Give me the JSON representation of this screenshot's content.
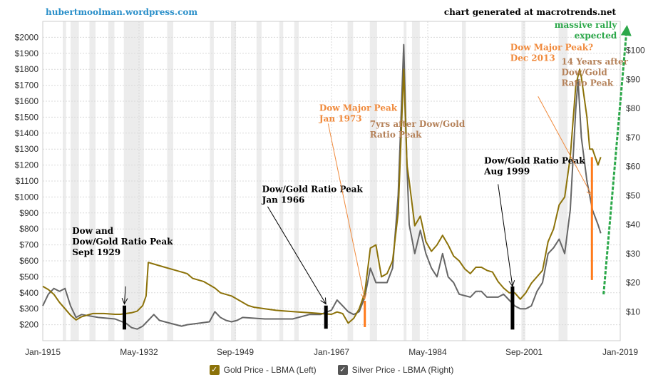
{
  "header": {
    "site": "hubertmoolman.wordpress.com",
    "credit": "chart generated at macrotrends.net"
  },
  "chart_data": {
    "type": "line",
    "x_range": [
      1915,
      2019
    ],
    "x_ticks": [
      {
        "year": 1915,
        "label": "Jan-1915"
      },
      {
        "year": 1932.33,
        "label": "May-1932"
      },
      {
        "year": 1949.67,
        "label": "Sep-1949"
      },
      {
        "year": 1967,
        "label": "Jan-1967"
      },
      {
        "year": 1984.33,
        "label": "May-1984"
      },
      {
        "year": 2001.67,
        "label": "Sep-2001"
      },
      {
        "year": 2019,
        "label": "Jan-2019"
      }
    ],
    "y_left": {
      "min": 100,
      "max": 2100,
      "ticks": [
        200,
        300,
        400,
        500,
        600,
        700,
        800,
        900,
        1000,
        1100,
        1200,
        1300,
        1400,
        1500,
        1600,
        1700,
        1800,
        1900,
        2000
      ],
      "prefix": "$"
    },
    "y_right": {
      "min": 0,
      "max": 110,
      "ticks": [
        10,
        20,
        30,
        40,
        50,
        60,
        70,
        80,
        90,
        100
      ],
      "prefix": "$"
    },
    "recessions": [
      [
        1918.6,
        1919.2
      ],
      [
        1920,
        1921.5
      ],
      [
        1923.4,
        1924.5
      ],
      [
        1926.8,
        1927.9
      ],
      [
        1929.6,
        1933.2
      ],
      [
        1937.4,
        1938.5
      ],
      [
        1945.1,
        1945.8
      ],
      [
        1948.9,
        1949.8
      ],
      [
        1953.5,
        1954.4
      ],
      [
        1957.6,
        1958.3
      ],
      [
        1960.3,
        1961.1
      ],
      [
        1969.9,
        1970.9
      ],
      [
        1973.9,
        1975.2
      ],
      [
        1980,
        1980.5
      ],
      [
        1981.5,
        1982.9
      ],
      [
        1990.5,
        1991.2
      ],
      [
        2001.2,
        2001.9
      ],
      [
        2007.9,
        2009.5
      ]
    ],
    "series": [
      {
        "name": "Gold Price - LBMA (Left)",
        "axis": "left",
        "color": "#8c7209",
        "points": [
          [
            1915,
            440
          ],
          [
            1916,
            420
          ],
          [
            1917,
            390
          ],
          [
            1918,
            340
          ],
          [
            1919,
            300
          ],
          [
            1920,
            260
          ],
          [
            1921,
            230
          ],
          [
            1922,
            250
          ],
          [
            1923,
            260
          ],
          [
            1924,
            270
          ],
          [
            1926,
            270
          ],
          [
            1928,
            265
          ],
          [
            1929,
            265
          ],
          [
            1930,
            270
          ],
          [
            1931,
            275
          ],
          [
            1932,
            285
          ],
          [
            1933,
            320
          ],
          [
            1933.6,
            380
          ],
          [
            1934,
            590
          ],
          [
            1935,
            580
          ],
          [
            1937,
            560
          ],
          [
            1939,
            540
          ],
          [
            1941,
            520
          ],
          [
            1942,
            490
          ],
          [
            1944,
            470
          ],
          [
            1945,
            450
          ],
          [
            1946,
            430
          ],
          [
            1947,
            400
          ],
          [
            1949,
            380
          ],
          [
            1950,
            360
          ],
          [
            1951,
            340
          ],
          [
            1952,
            320
          ],
          [
            1953,
            310
          ],
          [
            1955,
            300
          ],
          [
            1957,
            290
          ],
          [
            1959,
            285
          ],
          [
            1961,
            280
          ],
          [
            1963,
            275
          ],
          [
            1965,
            270
          ],
          [
            1967,
            265
          ],
          [
            1968,
            280
          ],
          [
            1969,
            270
          ],
          [
            1970,
            210
          ],
          [
            1971,
            240
          ],
          [
            1972,
            300
          ],
          [
            1973,
            400
          ],
          [
            1974,
            680
          ],
          [
            1975,
            700
          ],
          [
            1976,
            500
          ],
          [
            1977,
            520
          ],
          [
            1978,
            600
          ],
          [
            1979,
            900
          ],
          [
            1980,
            1800
          ],
          [
            1980.6,
            1200
          ],
          [
            1981,
            1100
          ],
          [
            1982,
            820
          ],
          [
            1983,
            880
          ],
          [
            1984,
            720
          ],
          [
            1985,
            660
          ],
          [
            1986,
            700
          ],
          [
            1987,
            760
          ],
          [
            1988,
            700
          ],
          [
            1989,
            630
          ],
          [
            1990,
            600
          ],
          [
            1991,
            550
          ],
          [
            1992,
            520
          ],
          [
            1993,
            560
          ],
          [
            1994,
            560
          ],
          [
            1995,
            540
          ],
          [
            1996,
            530
          ],
          [
            1997,
            470
          ],
          [
            1998,
            430
          ],
          [
            1999,
            400
          ],
          [
            2000,
            400
          ],
          [
            2001,
            360
          ],
          [
            2002,
            400
          ],
          [
            2003,
            460
          ],
          [
            2004,
            500
          ],
          [
            2005,
            540
          ],
          [
            2006,
            720
          ],
          [
            2007,
            800
          ],
          [
            2008,
            950
          ],
          [
            2009,
            1000
          ],
          [
            2010,
            1250
          ],
          [
            2011,
            1700
          ],
          [
            2011.7,
            1800
          ],
          [
            2012,
            1750
          ],
          [
            2013,
            1500
          ],
          [
            2013.5,
            1300
          ],
          [
            2014,
            1300
          ],
          [
            2015,
            1200
          ],
          [
            2015.5,
            1250
          ]
        ]
      },
      {
        "name": "Silver Price - LBMA (Right)",
        "axis": "right",
        "color": "#666666",
        "points": [
          [
            1915,
            12
          ],
          [
            1916,
            16
          ],
          [
            1917,
            18
          ],
          [
            1918,
            17
          ],
          [
            1919,
            18
          ],
          [
            1920,
            12
          ],
          [
            1921,
            8
          ],
          [
            1922,
            9
          ],
          [
            1925,
            8
          ],
          [
            1928,
            7.5
          ],
          [
            1930,
            6
          ],
          [
            1931,
            4.5
          ],
          [
            1932,
            4
          ],
          [
            1933,
            5
          ],
          [
            1934,
            7
          ],
          [
            1935,
            9
          ],
          [
            1936,
            7
          ],
          [
            1938,
            6
          ],
          [
            1940,
            5
          ],
          [
            1941,
            5.5
          ],
          [
            1943,
            6
          ],
          [
            1945,
            6.5
          ],
          [
            1946,
            10
          ],
          [
            1947,
            8
          ],
          [
            1948,
            7
          ],
          [
            1949,
            6.5
          ],
          [
            1950,
            7
          ],
          [
            1951,
            8
          ],
          [
            1955,
            7.5
          ],
          [
            1960,
            7.5
          ],
          [
            1963,
            9
          ],
          [
            1965,
            9
          ],
          [
            1967,
            10.5
          ],
          [
            1968,
            14
          ],
          [
            1969,
            12
          ],
          [
            1970,
            10
          ],
          [
            1971,
            9
          ],
          [
            1972,
            10
          ],
          [
            1973,
            15
          ],
          [
            1974,
            25
          ],
          [
            1975,
            20
          ],
          [
            1976,
            20
          ],
          [
            1977,
            20
          ],
          [
            1978,
            25
          ],
          [
            1979,
            50
          ],
          [
            1980,
            102
          ],
          [
            1980.6,
            60
          ],
          [
            1981,
            40
          ],
          [
            1982,
            30
          ],
          [
            1983,
            38
          ],
          [
            1984,
            30
          ],
          [
            1985,
            25
          ],
          [
            1986,
            22
          ],
          [
            1987,
            30
          ],
          [
            1988,
            22
          ],
          [
            1989,
            20
          ],
          [
            1990,
            16
          ],
          [
            1992,
            15
          ],
          [
            1993,
            17
          ],
          [
            1994,
            17
          ],
          [
            1995,
            15
          ],
          [
            1996,
            15
          ],
          [
            1997,
            15
          ],
          [
            1998,
            16
          ],
          [
            1999,
            14
          ],
          [
            2000,
            12
          ],
          [
            2001,
            11
          ],
          [
            2002,
            11
          ],
          [
            2003,
            12
          ],
          [
            2004,
            17
          ],
          [
            2005,
            20
          ],
          [
            2006,
            30
          ],
          [
            2007,
            32
          ],
          [
            2008,
            35
          ],
          [
            2009,
            30
          ],
          [
            2010,
            45
          ],
          [
            2011,
            80
          ],
          [
            2011.4,
            90
          ],
          [
            2012,
            70
          ],
          [
            2013,
            55
          ],
          [
            2014,
            45
          ],
          [
            2015,
            40
          ],
          [
            2015.5,
            37
          ]
        ]
      }
    ],
    "markers": [
      {
        "year": 1929.7,
        "axis": "left",
        "bottom": 170,
        "top": 320,
        "color": "#000000"
      },
      {
        "year": 1966.0,
        "axis": "left",
        "bottom": 175,
        "top": 320,
        "color": "#000000"
      },
      {
        "year": 1973.0,
        "axis": "left",
        "bottom": 185,
        "top": 350,
        "color": "#ff7a1a"
      },
      {
        "year": 1999.6,
        "axis": "left",
        "bottom": 170,
        "top": 440,
        "color": "#000000"
      },
      {
        "year": 2013.9,
        "axis": "left",
        "bottom": 480,
        "top": 1250,
        "color": "#ff7a1a"
      }
    ],
    "annotations": [
      {
        "lines": [
          "Dow and",
          "Dow/Gold Ratio Peak",
          "Sept 1929"
        ],
        "color": "#000000",
        "label_at": [
          1920.3,
          770
        ],
        "arrow_from": [
          1929.9,
          440
        ],
        "arrow_to": [
          1929.7,
          330
        ]
      },
      {
        "lines": [
          "Dow/Gold Ratio Peak",
          "Jan 1966"
        ],
        "color": "#000000",
        "label_at": [
          1954.5,
          1030
        ],
        "arrow_from": [
          1955.5,
          940
        ],
        "arrow_to": [
          1966.0,
          330
        ]
      },
      {
        "lines": [
          "Dow Major Peak",
          "Jan 1973"
        ],
        "color": "#f08a3c",
        "label_at": [
          1964.8,
          1540
        ],
        "arrow_from": [
          1966.4,
          1460
        ],
        "arrow_to": [
          1973.0,
          360
        ]
      },
      {
        "lines": [
          "7yrs after Dow/Gold",
          "Ratio Peak"
        ],
        "color": "#b5825a",
        "label_at": [
          1973.9,
          1440
        ],
        "arrow_from": null,
        "arrow_to": null
      },
      {
        "lines": [
          "Dow/Gold Ratio Peak",
          "Aug 1999"
        ],
        "color": "#000000",
        "label_at": [
          1994.5,
          1210
        ],
        "arrow_from": [
          1997.0,
          1080
        ],
        "arrow_to": [
          1999.6,
          440
        ]
      },
      {
        "lines": [
          "Dow Major Peak?",
          "Dec 2013"
        ],
        "color": "#f08a3c",
        "label_at": [
          1999.2,
          1920
        ],
        "arrow_from": [
          2004.2,
          1630
        ],
        "arrow_to": [
          2013.9,
          1010
        ]
      },
      {
        "lines": [
          "14 Years after",
          "Dow/Gold",
          "Ratio Peak"
        ],
        "color": "#b5825a",
        "label_at": [
          2008.4,
          1830
        ],
        "arrow_from": null,
        "arrow_to": null
      },
      {
        "lines": [
          "massive rally",
          "expected"
        ],
        "color": "#2ca84a",
        "label_at": [
          2018.4,
          2060
        ],
        "arrow_from": null,
        "arrow_to": null,
        "anchor": "end"
      }
    ],
    "rally_arrow": {
      "color": "#2ca84a",
      "from": [
        2016.0,
        390
      ],
      "to": [
        2020.2,
        2100
      ]
    }
  },
  "legend": {
    "gold": {
      "label": "Gold Price - LBMA (Left)",
      "color": "#8c7209"
    },
    "silver": {
      "label": "Silver Price - LBMA (Right)",
      "color": "#555555"
    }
  }
}
